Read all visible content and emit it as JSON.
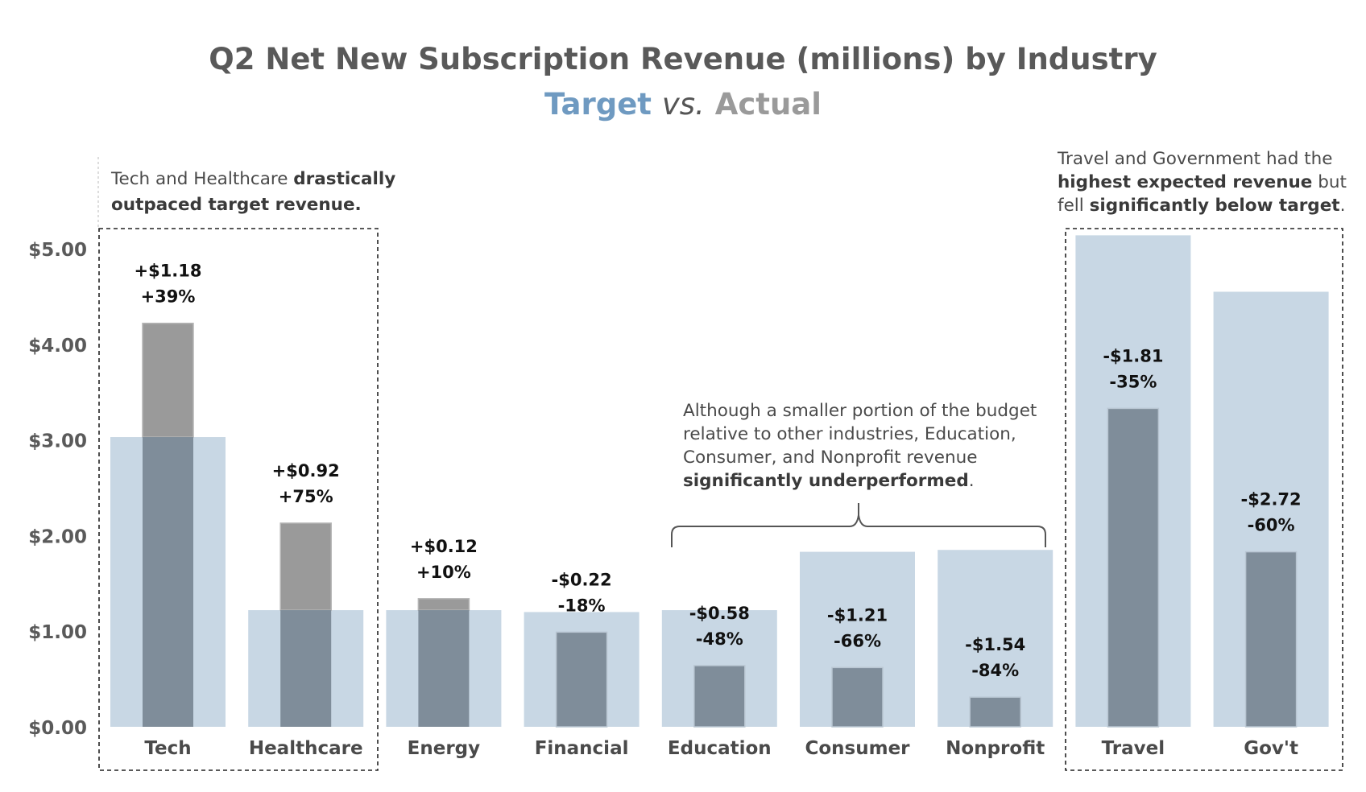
{
  "chart_data": {
    "type": "bar",
    "title": "Q2 Net New Subscription Revenue (millions) by Industry",
    "subtitle": {
      "series1": "Target",
      "vs": "vs.",
      "series2": "Actual"
    },
    "categories": [
      "Tech",
      "Healthcare",
      "Energy",
      "Financial",
      "Education",
      "Consumer",
      "Nonprofit",
      "Travel",
      "Gov't"
    ],
    "series": [
      {
        "name": "Target",
        "values": [
          3.03,
          1.22,
          1.22,
          1.2,
          1.22,
          1.83,
          1.85,
          5.14,
          4.55
        ],
        "color": "#c8d7e4"
      },
      {
        "name": "Actual",
        "values": [
          4.22,
          2.13,
          1.34,
          0.99,
          0.64,
          0.62,
          0.31,
          3.33,
          1.83
        ],
        "color": "#7f8d9a"
      }
    ],
    "diff_labels": [
      "+$1.18",
      "+$0.92",
      "+$0.12",
      "-$0.22",
      "-$0.58",
      "-$1.21",
      "-$1.54",
      "-$1.81",
      "-$2.72"
    ],
    "pct_labels": [
      "+39%",
      "+75%",
      "+10%",
      "-18%",
      "-48%",
      "-66%",
      "-84%",
      "-35%",
      "-60%"
    ],
    "yticks": [
      "$0.00",
      "$1.00",
      "$2.00",
      "$3.00",
      "$4.00",
      "$5.00"
    ],
    "ylim": [
      0,
      5.2
    ],
    "grid": false,
    "legend": "none",
    "colors": {
      "target": "#c8d7e4",
      "actual_over": "#9a9a9a",
      "actual": "#7f8d9a",
      "target_text": "#6f9ac1",
      "actual_text": "#9a9a9a"
    },
    "annotations": {
      "left": {
        "line1a": "Tech and Healthcare ",
        "line1b": "drastically",
        "line2": "outpaced target revenue."
      },
      "middle": {
        "line1": "Although a smaller portion of the budget",
        "line2": "relative to other industries, Education,",
        "line3": "Consumer, and Nonprofit revenue",
        "line4b": "significantly underperformed",
        "line4a": "."
      },
      "right": {
        "line1": "Travel and Government had the",
        "line2b": "highest expected revenue",
        "line2a": " but",
        "line3a": "fell ",
        "line3b": "significantly below target",
        "line3c": "."
      }
    }
  }
}
